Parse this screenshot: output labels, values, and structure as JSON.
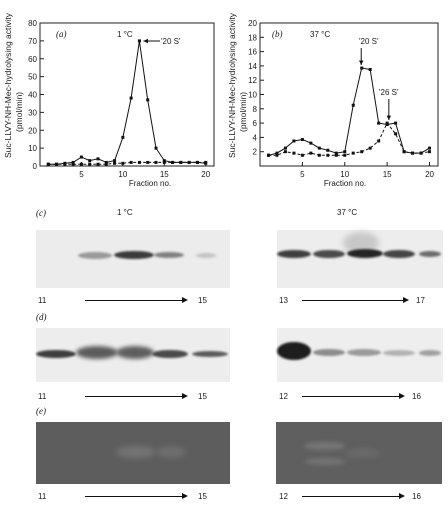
{
  "chart_data": [
    {
      "type": "line",
      "panel": "(a)",
      "title": "1 °C",
      "annotation": "'20 S'",
      "xlabel": "Fraction no.",
      "ylabel": "Suc-LLVY-NH-Mec-hydrolysing activity (pmol/min)",
      "xticks": [
        5,
        10,
        15,
        20
      ],
      "yticks": [
        0,
        10,
        20,
        30,
        40,
        50,
        60,
        70,
        80
      ],
      "xlim": [
        0,
        21
      ],
      "ylim": [
        0,
        80
      ],
      "series": [
        {
          "style": "solid",
          "x": [
            1,
            2,
            3,
            4,
            5,
            6,
            7,
            8,
            9,
            10,
            11,
            12,
            13,
            14,
            15,
            16,
            17,
            18,
            19,
            20
          ],
          "y": [
            1,
            1,
            1.5,
            2,
            5,
            3,
            4,
            2,
            3,
            16,
            38,
            70,
            37,
            10,
            3,
            2,
            2,
            2,
            2,
            1.5
          ]
        },
        {
          "style": "dashed",
          "x": [
            1,
            2,
            3,
            4,
            5,
            6,
            7,
            8,
            9,
            10,
            11,
            12,
            13,
            14,
            15,
            16,
            17,
            18,
            19,
            20
          ],
          "y": [
            1,
            1,
            1,
            1,
            1,
            1,
            1,
            1,
            1.5,
            1.5,
            2,
            2,
            2,
            2,
            2,
            2,
            2,
            2,
            2,
            2
          ]
        }
      ]
    },
    {
      "type": "line",
      "panel": "(b)",
      "title": "37 °C",
      "annotations": [
        "'20 S'",
        "'26 S'"
      ],
      "xlabel": "Fraction no.",
      "ylabel": "Suc-LLVY-NH-Mec-hydrolysing activity (pmol/min)",
      "xticks": [
        5,
        10,
        15,
        20
      ],
      "yticks": [
        2,
        4,
        6,
        8,
        10,
        12,
        14,
        16,
        18,
        20
      ],
      "xlim": [
        0,
        21
      ],
      "ylim": [
        0,
        20
      ],
      "series": [
        {
          "style": "solid",
          "x": [
            1,
            2,
            3,
            4,
            5,
            6,
            7,
            8,
            9,
            10,
            11,
            12,
            13,
            14,
            15,
            16,
            17,
            18,
            19,
            20
          ],
          "y": [
            1.5,
            1.8,
            2.5,
            3.5,
            3.7,
            3.2,
            2.5,
            2.2,
            1.8,
            2,
            8.5,
            13.7,
            13.5,
            6,
            5.8,
            6,
            2,
            1.8,
            1.8,
            2.5
          ]
        },
        {
          "style": "dashed",
          "x": [
            1,
            2,
            3,
            4,
            5,
            6,
            7,
            8,
            9,
            10,
            11,
            12,
            13,
            14,
            15,
            16,
            17,
            18,
            19,
            20
          ],
          "y": [
            1.5,
            1.5,
            2,
            1.8,
            1.5,
            1.8,
            1.5,
            1.5,
            1.5,
            1.5,
            1.8,
            2,
            2.5,
            3.5,
            6,
            4.5,
            2,
            1.8,
            1.8,
            2
          ]
        }
      ]
    }
  ],
  "panels": {
    "c": {
      "label": "(c)",
      "left_title": "1 °C",
      "right_title": "37 °C",
      "left_range": [
        "11",
        "15"
      ],
      "right_range": [
        "13",
        "17"
      ]
    },
    "d": {
      "label": "(d)",
      "left_range": [
        "11",
        "15"
      ],
      "right_range": [
        "12",
        "16"
      ]
    },
    "e": {
      "label": "(e)",
      "left_range": [
        "11",
        "15"
      ],
      "right_range": [
        "12",
        "16"
      ]
    }
  }
}
